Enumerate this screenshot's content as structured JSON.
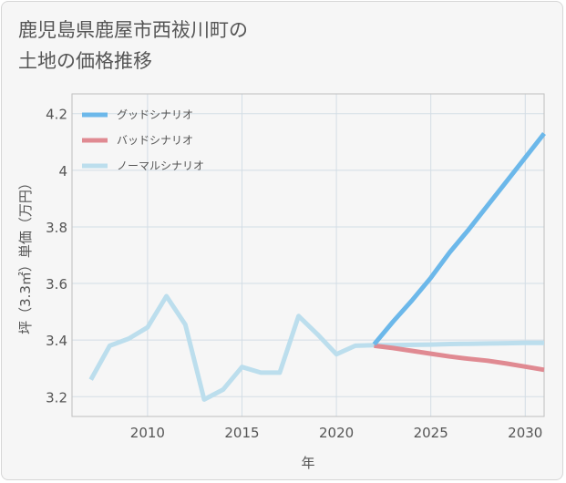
{
  "chart_data": {
    "type": "line",
    "title": "鹿児島県鹿屋市西祓川町の土地の価格推移",
    "title_lines": [
      "鹿児島県鹿屋市西祓川町の",
      "土地の価格推移"
    ],
    "xlabel": "年",
    "ylabel": "坪（3.3㎡）単価（万円）",
    "xlim": [
      2006,
      2031
    ],
    "ylim": [
      3.13,
      4.27
    ],
    "x_ticks": [
      2010,
      2015,
      2020,
      2025,
      2030
    ],
    "x_tick_labels": [
      "2010",
      "2015",
      "2020",
      "2025",
      "2030"
    ],
    "y_ticks": [
      3.2,
      3.4,
      3.6,
      3.8,
      4.0,
      4.2
    ],
    "y_tick_labels": [
      "3.2",
      "3.4",
      "3.6",
      "3.8",
      "4",
      "4.2"
    ],
    "grid": true,
    "legend_position": "top-left",
    "series": [
      {
        "name": "グッドシナリオ",
        "color": "#6cb8ea",
        "x": [
          2022,
          2023,
          2024,
          2025,
          2026,
          2027,
          2028,
          2029,
          2030,
          2031
        ],
        "values": [
          3.385,
          3.465,
          3.54,
          3.62,
          3.71,
          3.79,
          3.875,
          3.96,
          4.045,
          4.13
        ]
      },
      {
        "name": "バッドシナリオ",
        "color": "#e08a92",
        "x": [
          2022,
          2023,
          2024,
          2025,
          2026,
          2027,
          2028,
          2029,
          2030,
          2031
        ],
        "values": [
          3.38,
          3.372,
          3.362,
          3.352,
          3.342,
          3.334,
          3.327,
          3.317,
          3.306,
          3.295
        ]
      },
      {
        "name": "ノーマルシナリオ",
        "color": "#bcdeed",
        "x": [
          2007,
          2008,
          2009,
          2010,
          2011,
          2012,
          2013,
          2014,
          2015,
          2016,
          2017,
          2018,
          2019,
          2020,
          2021,
          2022,
          2023,
          2024,
          2025,
          2026,
          2027,
          2028,
          2029,
          2030,
          2031
        ],
        "values": [
          3.26,
          3.38,
          3.405,
          3.445,
          3.555,
          3.455,
          3.19,
          3.225,
          3.305,
          3.285,
          3.285,
          3.485,
          3.42,
          3.35,
          3.38,
          3.382,
          3.382,
          3.383,
          3.384,
          3.386,
          3.387,
          3.388,
          3.389,
          3.39,
          3.39
        ]
      }
    ]
  }
}
